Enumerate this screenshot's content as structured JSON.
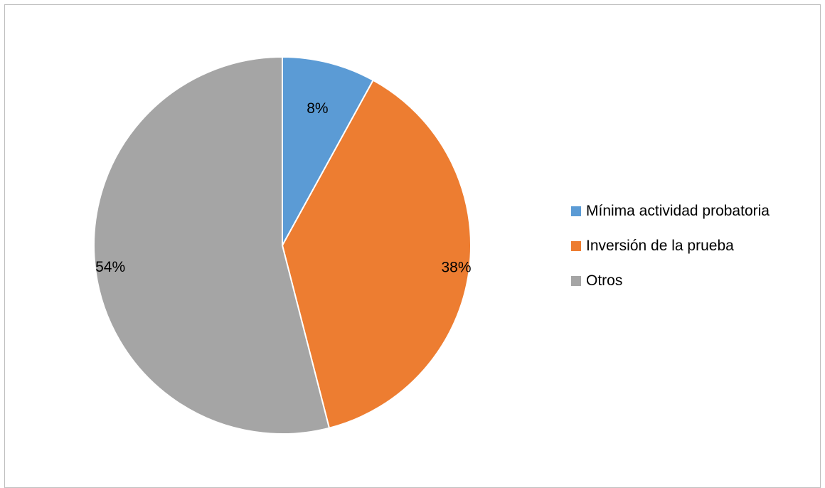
{
  "chart_data": {
    "type": "pie",
    "title": "",
    "categories": [
      "Mínima actividad probatoria",
      "Inversión de la prueba",
      "Otros"
    ],
    "values": [
      8,
      38,
      54
    ],
    "data_labels": [
      "8%",
      "38%",
      "54%"
    ],
    "colors": [
      "#5b9bd5",
      "#ed7d31",
      "#a5a5a5"
    ],
    "legend_position": "right",
    "start_angle": "top, clockwise"
  }
}
